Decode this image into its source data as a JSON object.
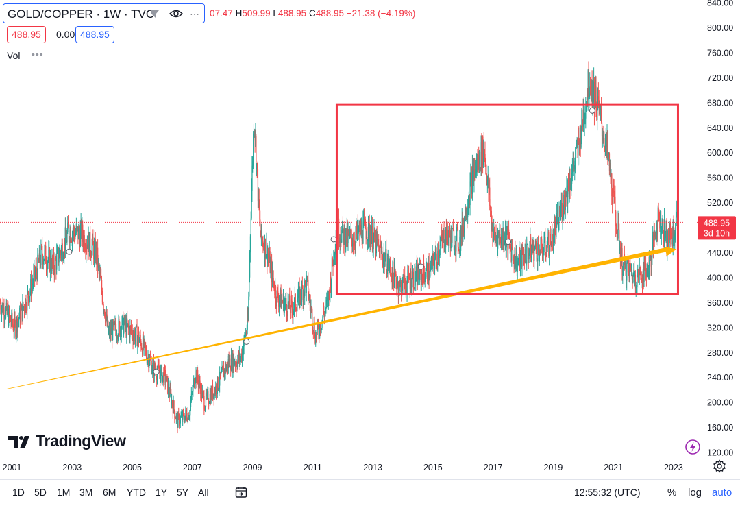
{
  "header": {
    "symbol": "GOLD/COPPER · 1W · TVC",
    "ohlc": [
      {
        "k": "",
        "v": "07.47"
      },
      {
        "k": "H",
        "v": "509.99"
      },
      {
        "k": "L",
        "v": "488.95"
      },
      {
        "k": "C",
        "v": "488.95"
      },
      {
        "k": "",
        "v": "−21.38 (−4.19%)"
      }
    ],
    "bid": "488.95",
    "spread": "0.00",
    "ask": "488.95",
    "vol_label": "Vol",
    "vol_dots": "•••"
  },
  "branding": {
    "logo_text": "TradingView"
  },
  "toolbar": {
    "ranges": [
      "1D",
      "5D",
      "1M",
      "3M",
      "6M",
      "YTD",
      "1Y",
      "5Y",
      "All"
    ],
    "clock": "12:55:32 (UTC)",
    "percent": "%",
    "log": "log",
    "auto": "auto"
  },
  "colors": {
    "up": "#26a69a",
    "down": "#ef5350",
    "trendline": "#ffb300",
    "box": "#f23645",
    "price_tag": "#f23645",
    "accent": "#2962ff"
  },
  "chart_data": {
    "type": "candlestick",
    "title": "GOLD/COPPER · 1W · TVC",
    "xlabel": "",
    "ylabel": "",
    "x_ticks": [
      "2001",
      "2003",
      "2005",
      "2007",
      "2009",
      "2011",
      "2013",
      "2015",
      "2017",
      "2019",
      "2021",
      "2023"
    ],
    "y_ticks": [
      120,
      160,
      200,
      240,
      280,
      320,
      360,
      400,
      440,
      480,
      520,
      560,
      600,
      640,
      680,
      720,
      760,
      800,
      840
    ],
    "y_tick_labels": [
      "120.00",
      "160.00",
      "200.00",
      "240.00",
      "280.00",
      "320.00",
      "360.00",
      "400.00",
      "440.00",
      "480.00",
      "520.00",
      "560.00",
      "600.00",
      "640.00",
      "680.00",
      "720.00",
      "760.00",
      "800.00",
      "840.00"
    ],
    "xlim": [
      2000.6,
      2023.8
    ],
    "ylim": [
      114,
      845
    ],
    "price_path": [
      [
        2000.6,
        360
      ],
      [
        2001.1,
        320
      ],
      [
        2001.6,
        380
      ],
      [
        2002.0,
        440
      ],
      [
        2002.4,
        420
      ],
      [
        2002.9,
        475
      ],
      [
        2003.3,
        470
      ],
      [
        2003.8,
        440
      ],
      [
        2004.2,
        310
      ],
      [
        2004.7,
        325
      ],
      [
        2005.2,
        305
      ],
      [
        2005.7,
        255
      ],
      [
        2006.1,
        240
      ],
      [
        2006.5,
        170
      ],
      [
        2006.9,
        185
      ],
      [
        2007.1,
        250
      ],
      [
        2007.4,
        200
      ],
      [
        2007.8,
        225
      ],
      [
        2008.2,
        265
      ],
      [
        2008.6,
        270
      ],
      [
        2008.85,
        330
      ],
      [
        2008.95,
        520
      ],
      [
        2009.05,
        665
      ],
      [
        2009.25,
        470
      ],
      [
        2009.5,
        440
      ],
      [
        2009.8,
        370
      ],
      [
        2010.3,
        350
      ],
      [
        2010.8,
        390
      ],
      [
        2011.1,
        305
      ],
      [
        2011.5,
        360
      ],
      [
        2011.8,
        480
      ],
      [
        2012.2,
        460
      ],
      [
        2012.8,
        480
      ],
      [
        2013.4,
        430
      ],
      [
        2013.9,
        385
      ],
      [
        2014.3,
        400
      ],
      [
        2014.9,
        410
      ],
      [
        2015.4,
        470
      ],
      [
        2015.9,
        460
      ],
      [
        2016.3,
        560
      ],
      [
        2016.7,
        610
      ],
      [
        2017.0,
        465
      ],
      [
        2017.4,
        470
      ],
      [
        2017.8,
        425
      ],
      [
        2018.2,
        445
      ],
      [
        2018.7,
        445
      ],
      [
        2019.0,
        465
      ],
      [
        2019.4,
        530
      ],
      [
        2019.8,
        600
      ],
      [
        2020.2,
        720
      ],
      [
        2020.5,
        670
      ],
      [
        2020.8,
        600
      ],
      [
        2021.1,
        490
      ],
      [
        2021.3,
        420
      ],
      [
        2021.8,
        400
      ],
      [
        2022.2,
        420
      ],
      [
        2022.5,
        500
      ],
      [
        2022.8,
        460
      ],
      [
        2023.0,
        470
      ],
      [
        2023.1,
        489
      ]
    ],
    "markers": [
      [
        2002.9,
        442
      ],
      [
        2005.8,
        250
      ],
      [
        2008.8,
        298
      ],
      [
        2011.7,
        462
      ],
      [
        2014.6,
        418
      ],
      [
        2017.5,
        458
      ],
      [
        2020.3,
        668
      ]
    ],
    "trendline": {
      "from": [
        2000.8,
        222
      ],
      "to": [
        2023.1,
        446
      ]
    },
    "range_box": {
      "x": [
        2011.8,
        2023.15
      ],
      "y": [
        374,
        678
      ]
    },
    "last_price": {
      "value": 488.95,
      "label": "488.95",
      "countdown": "3d 10h"
    }
  }
}
